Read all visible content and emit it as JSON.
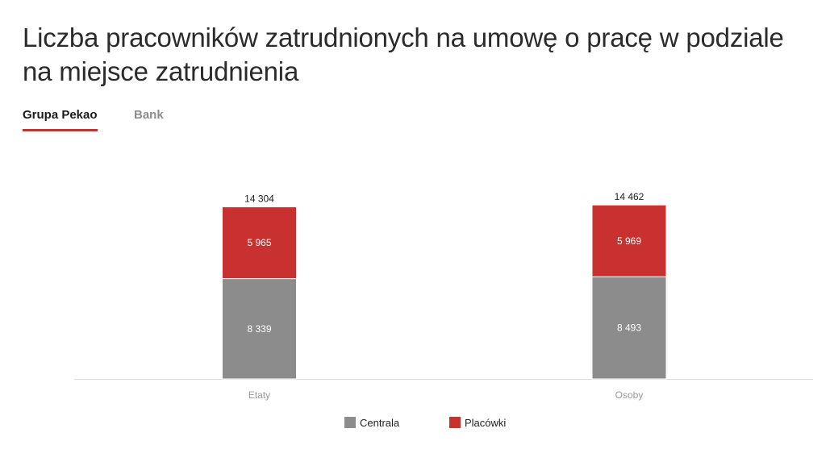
{
  "page": {
    "title": "Liczba pracowników zatrudnionych na umowę o pracę w podziale na miejsce zatrudnienia"
  },
  "tabs": [
    {
      "label": "Grupa Pekao",
      "active": true
    },
    {
      "label": "Bank",
      "active": false
    }
  ],
  "colors": {
    "accent": "#c8312f",
    "centrala": "#8c8c8c",
    "placowki": "#c8312f",
    "axis": "#dddddd",
    "tick_label": "#999999"
  },
  "chart_data": {
    "type": "bar",
    "stacked": true,
    "categories": [
      "Etaty",
      "Osoby"
    ],
    "series": [
      {
        "name": "Centrala",
        "values": [
          8339,
          8493
        ],
        "labels": [
          "8 339",
          "8 493"
        ]
      },
      {
        "name": "Placówki",
        "values": [
          5965,
          5969
        ],
        "labels": [
          "5 965",
          "5 969"
        ]
      }
    ],
    "totals": [
      14304,
      14462
    ],
    "total_labels": [
      "14 304",
      "14 462"
    ],
    "ylim": [
      0,
      16000
    ],
    "grid": false,
    "legend_position": "bottom"
  },
  "legend": [
    {
      "label": "Centrala"
    },
    {
      "label": "Placówki"
    }
  ]
}
